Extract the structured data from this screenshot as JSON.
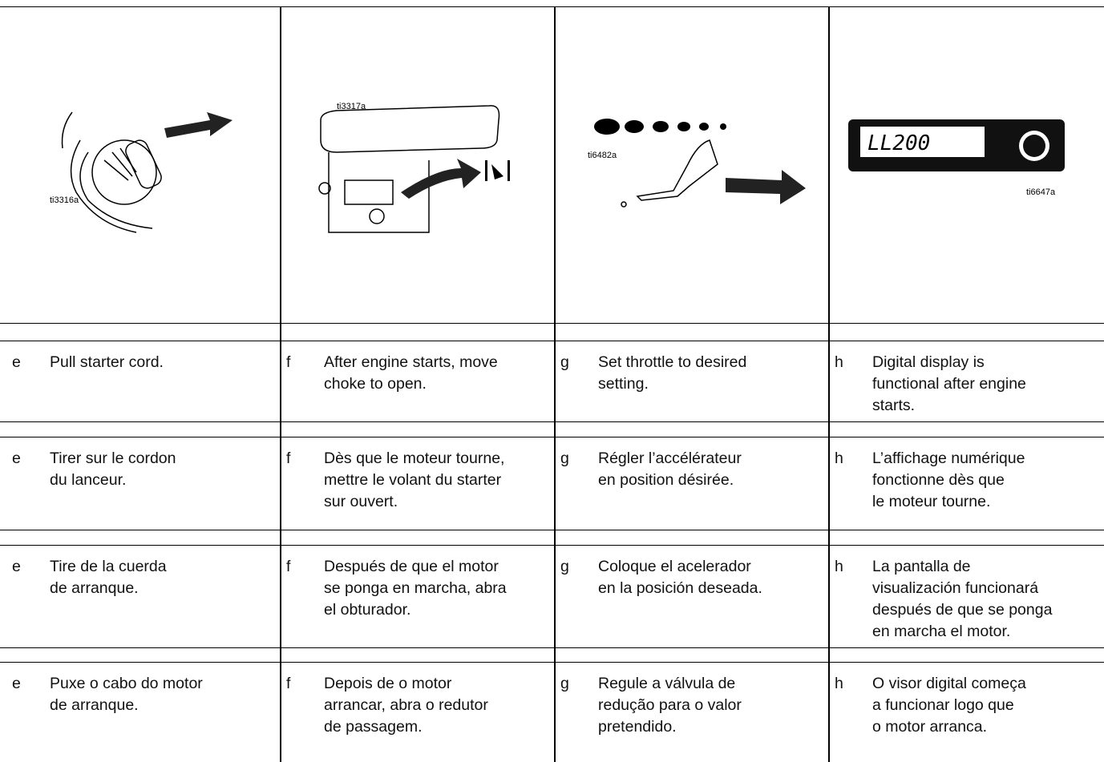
{
  "illustrations": [
    {
      "label": "ti3316a"
    },
    {
      "label": "ti3317a"
    },
    {
      "label": "ti6482a"
    },
    {
      "label": "ti6647a",
      "display": "LL200"
    }
  ],
  "rows": [
    [
      {
        "letter": "e",
        "lines": [
          "Pull starter cord."
        ]
      },
      {
        "letter": "f",
        "lines": [
          "After engine starts, move",
          "choke to open."
        ]
      },
      {
        "letter": "g",
        "lines": [
          "Set throttle to desired",
          "setting."
        ]
      },
      {
        "letter": "h",
        "lines": [
          "Digital display is",
          "functional after engine",
          "starts."
        ]
      }
    ],
    [
      {
        "letter": "e",
        "lines": [
          "Tirer sur le cordon",
          "du lanceur."
        ]
      },
      {
        "letter": "f",
        "lines": [
          "Dès que le moteur tourne,",
          "mettre le volant du starter",
          "sur ouvert."
        ]
      },
      {
        "letter": "g",
        "lines": [
          "Régler l’accélérateur",
          "en position désirée."
        ]
      },
      {
        "letter": "h",
        "lines": [
          "L’affichage numérique",
          "fonctionne dès que",
          "le moteur tourne."
        ]
      }
    ],
    [
      {
        "letter": "e",
        "lines": [
          "Tire de la cuerda",
          "de arranque."
        ]
      },
      {
        "letter": "f",
        "lines": [
          "Después de que el motor",
          "se ponga en marcha, abra",
          "el obturador."
        ]
      },
      {
        "letter": "g",
        "lines": [
          "Coloque el acelerador",
          "en la posición deseada."
        ]
      },
      {
        "letter": "h",
        "lines": [
          "La pantalla de",
          "visualización funcionará",
          "después de que se ponga",
          "en marcha el motor."
        ]
      }
    ],
    [
      {
        "letter": "e",
        "lines": [
          "Puxe o cabo do motor",
          "de arranque."
        ]
      },
      {
        "letter": "f",
        "lines": [
          "Depois de o motor",
          "arrancar, abra o redutor",
          "de passagem."
        ]
      },
      {
        "letter": "g",
        "lines": [
          "Regule a válvula de",
          "redução para o valor",
          "pretendido."
        ]
      },
      {
        "letter": "h",
        "lines": [
          "O visor digital começa",
          "a funcionar logo que",
          "o motor arranca."
        ]
      }
    ]
  ]
}
